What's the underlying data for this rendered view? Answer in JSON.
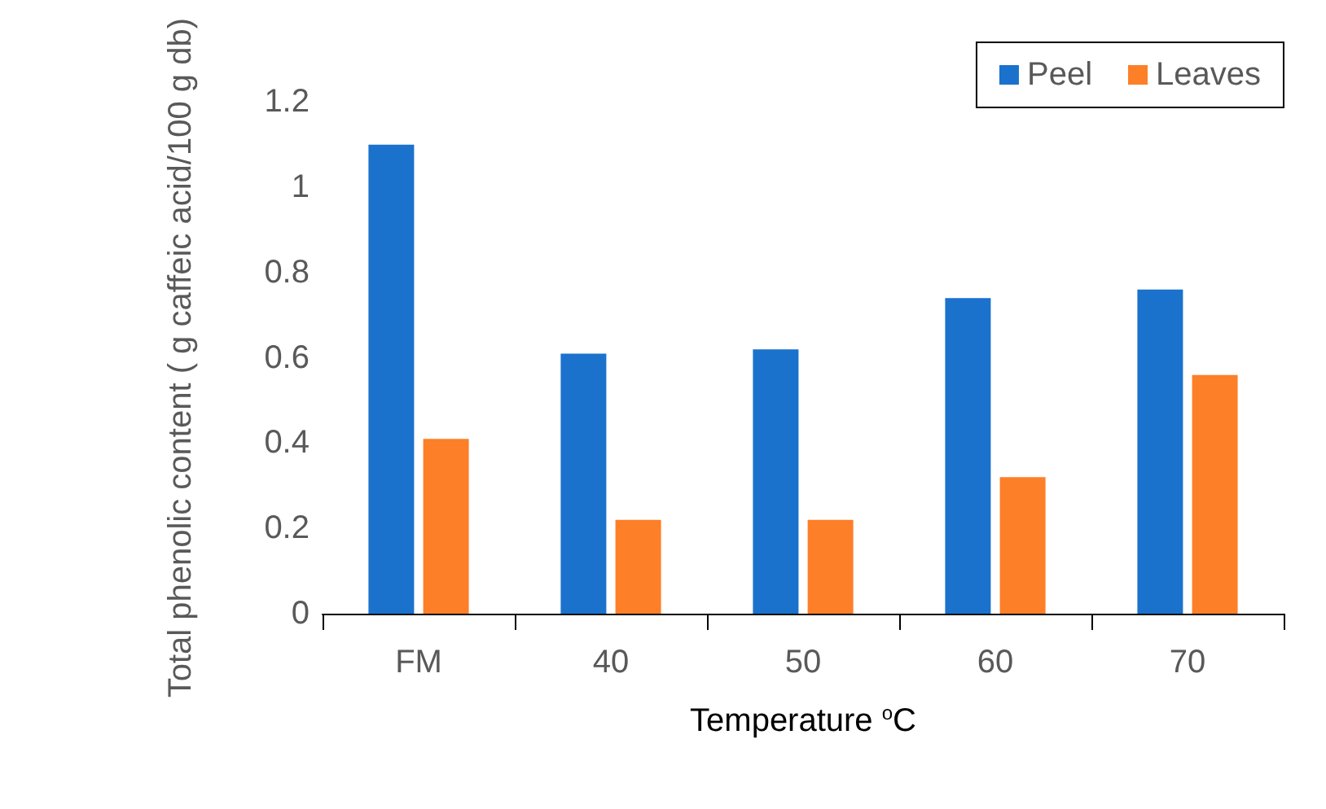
{
  "chart_data": {
    "type": "bar",
    "xlabel": "Temperature $^{o}$C",
    "ylabel": "Total phenolic content ( g caffeic acid/100 g db)",
    "categories": [
      "FM",
      "40",
      "50",
      "60",
      "70"
    ],
    "series": [
      {
        "name": "Peel",
        "color": "#1a72cc",
        "values": [
          1.1,
          0.61,
          0.62,
          0.74,
          0.76
        ]
      },
      {
        "name": "Leaves",
        "color": "#fd7f28",
        "values": [
          0.41,
          0.22,
          0.22,
          0.32,
          0.56
        ]
      }
    ],
    "ylim": [
      0,
      1.2
    ],
    "yticks": [
      0,
      0.2,
      0.4,
      0.6,
      0.8,
      1,
      1.2
    ],
    "grid": false,
    "legend": "top right"
  }
}
